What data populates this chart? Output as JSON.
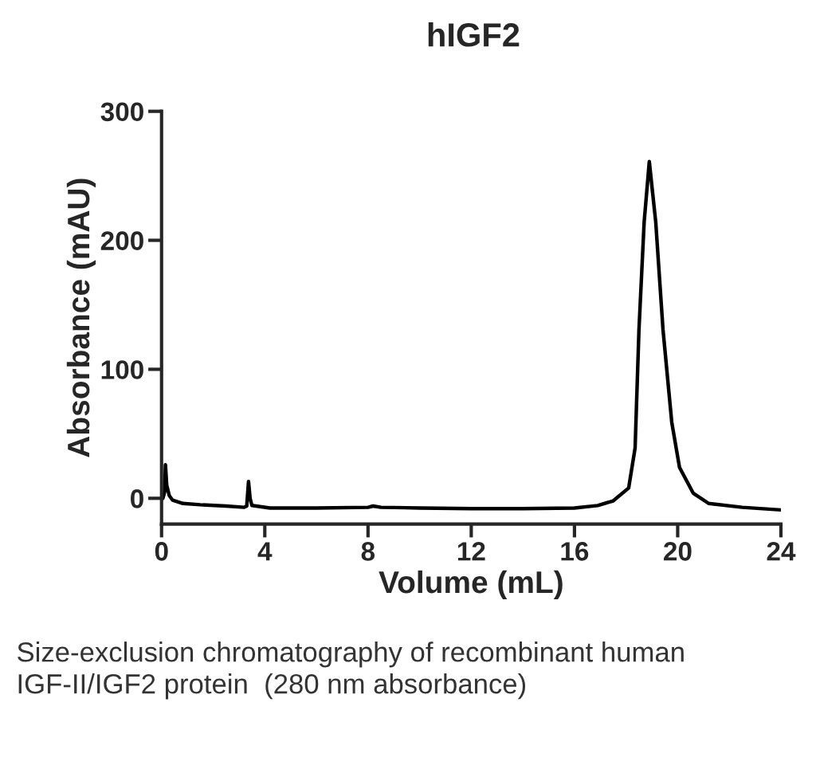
{
  "chart_data": {
    "type": "line",
    "title": "hIGF2",
    "xlabel": "Volume (mL)",
    "ylabel": "Absorbance (mAU)",
    "x": [
      0.05,
      0.12,
      0.15,
      0.2,
      0.3,
      0.43,
      0.83,
      1.5,
      2.5,
      3.2,
      3.3,
      3.37,
      3.43,
      3.5,
      4.2,
      6,
      8,
      8.2,
      8.5,
      10,
      12,
      14,
      16,
      16.9,
      17.5,
      18.1,
      18.35,
      18.5,
      18.7,
      18.9,
      19.15,
      19.43,
      19.77,
      20.07,
      20.6,
      21.2,
      22.5,
      24
    ],
    "series": [
      {
        "color": "#000000",
        "values": [
          0,
          5,
          26,
          10,
          2,
          -1.5,
          -4,
          -5,
          -6,
          -7,
          -6,
          13,
          0,
          -5.5,
          -7.5,
          -7.5,
          -7,
          -6,
          -7,
          -7.5,
          -8,
          -8,
          -7.5,
          -5.6,
          -2,
          8,
          39,
          131,
          214,
          261,
          214,
          131,
          59,
          24,
          4,
          -4,
          -7,
          -9
        ]
      }
    ],
    "xlim": [
      0,
      24
    ],
    "xticks": [
      0,
      4,
      8,
      12,
      16,
      20,
      24
    ],
    "ylim": [
      -20,
      300
    ],
    "yticks": [
      0,
      100,
      200,
      300
    ],
    "grid": false,
    "marker": "none",
    "line_style": "solid",
    "annotations": [
      "Size-exclusion chromatography of recombinant human IGF-II/IGF2 protein  (280 nm absorbance)"
    ]
  }
}
